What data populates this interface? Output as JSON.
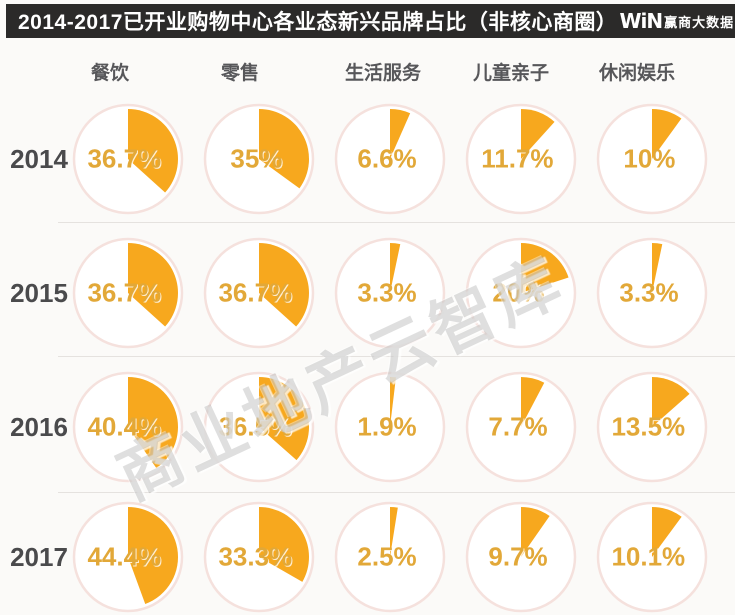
{
  "title": {
    "text": "2014-2017已开业购物中心各业态新兴品牌占比（非核心商圈）",
    "logo_mark": "WiN",
    "logo_label": "赢商大数据"
  },
  "watermark": "商业地产云智库",
  "chart_data": {
    "type": "pie",
    "title": "2014-2017已开业购物中心各业态新兴品牌占比（非核心商圈）",
    "layout": "grid of pie charts; rows = years, columns = business categories; wedge starts at 12 o'clock and sweeps clockwise",
    "columns": [
      "餐饮",
      "零售",
      "生活服务",
      "儿童亲子",
      "休闲娱乐"
    ],
    "rows": [
      "2014",
      "2015",
      "2016",
      "2017"
    ],
    "values_pct": [
      [
        36.7,
        35,
        6.6,
        11.7,
        10
      ],
      [
        36.7,
        36.7,
        3.3,
        20,
        3.3
      ],
      [
        40.4,
        36.5,
        1.9,
        7.7,
        13.5
      ],
      [
        44.4,
        33.3,
        2.5,
        9.7,
        10.1
      ]
    ],
    "labels": [
      [
        "36.7%",
        "35%",
        "6.6%",
        "11.7%",
        "10%"
      ],
      [
        "36.7%",
        "36.7%",
        "3.3%",
        "20%",
        "3.3%"
      ],
      [
        "40.4%",
        "36.5%",
        "1.9%",
        "7.7%",
        "13.5%"
      ],
      [
        "44.4%",
        "33.3%",
        "2.5%",
        "9.7%",
        "10.1%"
      ]
    ],
    "colors": {
      "wedge": "#F7A81E",
      "value_label": "#E2A838",
      "circle_border": "#F5E1DD",
      "circle_fill": "#FFFFFF",
      "title_bar_bg": "#2B2A29",
      "title_bar_text": "#FFFFFF",
      "header_text": "#57575A",
      "year_text": "#4A4A4C",
      "background": "#FBFAF8"
    },
    "pie_start_angle_deg": 0,
    "pie_direction": "clockwise",
    "legend": "none",
    "grid": "light horizontal dividers between year rows"
  }
}
